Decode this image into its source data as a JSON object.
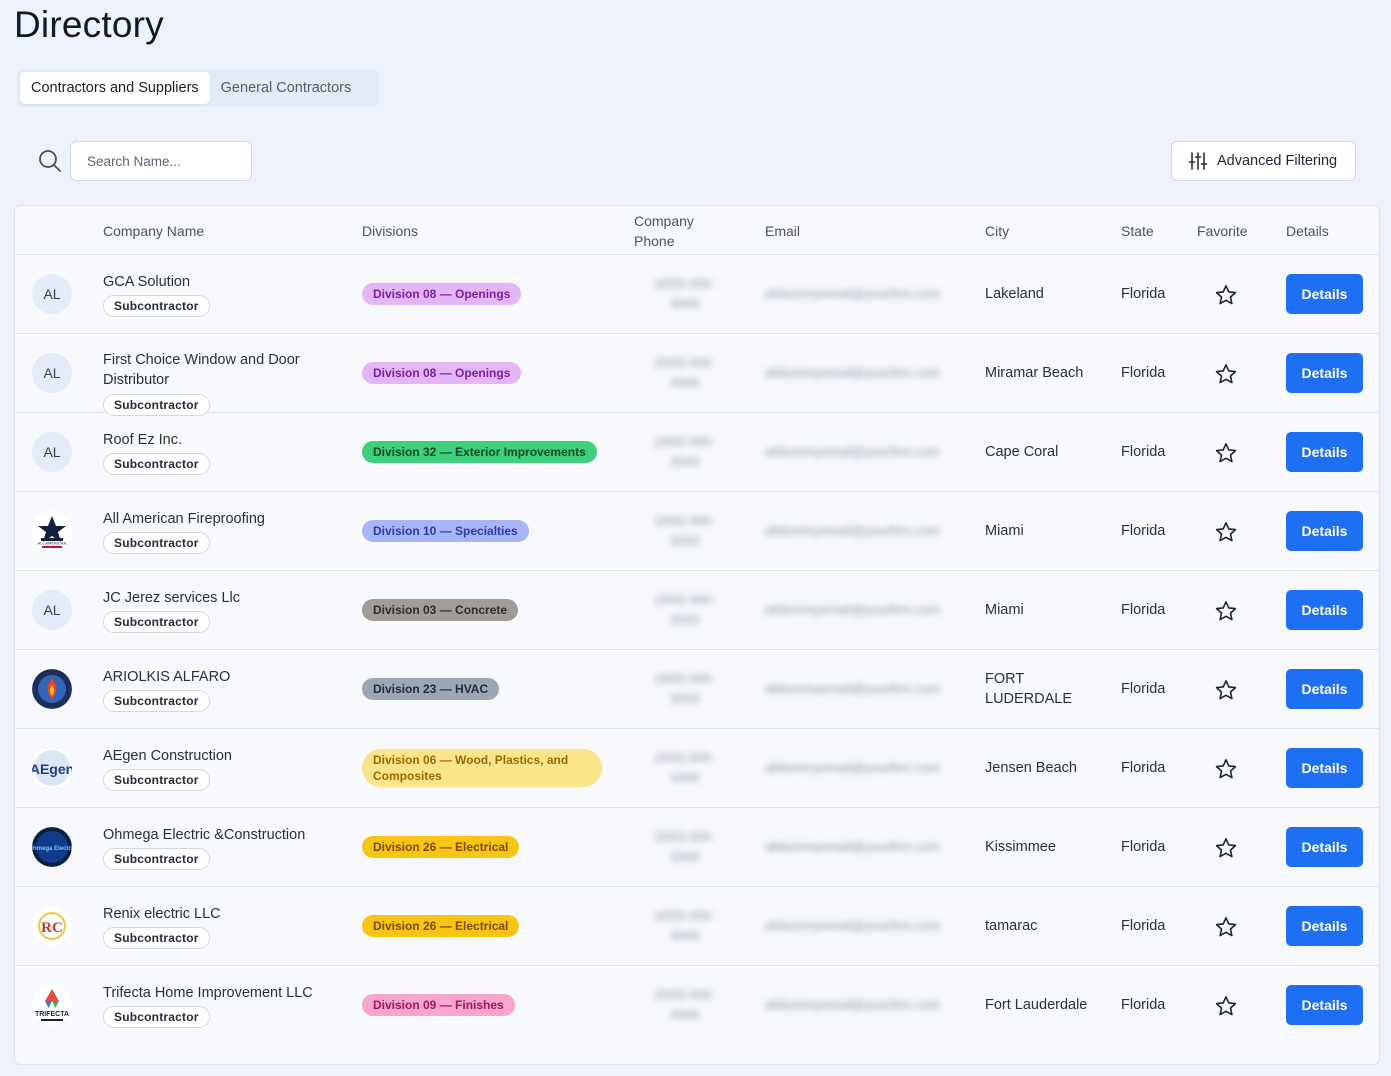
{
  "page_title": "Directory",
  "tabs": [
    {
      "label": "Contractors and Suppliers",
      "active": true
    },
    {
      "label": "General Contractors",
      "active": false
    }
  ],
  "search": {
    "placeholder": "Search Name..."
  },
  "advanced_filtering": {
    "label": "Advanced Filtering",
    "icon": "sliders-icon"
  },
  "columns": {
    "company_name": "Company Name",
    "divisions": "Divisions",
    "company_phone": "Company Phone",
    "email": "Email",
    "city": "City",
    "state": "State",
    "favorite": "Favorite",
    "details": "Details"
  },
  "details_label": "Details",
  "rows": [
    {
      "avatar": "AL",
      "name": "GCA Solution",
      "type": "Subcontractor",
      "division": "Division 08 — Openings",
      "division_bg": "#e5b6f7",
      "division_fg": "#7a1fa8",
      "phone": "(000) 000-0000",
      "email": "alldummyemail@yourfirm.com",
      "city": "Lakeland",
      "state": "Florida"
    },
    {
      "avatar": "AL",
      "name": "First Choice Window and Door Distributor",
      "type": "Subcontractor",
      "division": "Division 08 — Openings",
      "division_bg": "#e5b6f7",
      "division_fg": "#7a1fa8",
      "phone": "(000) 000-0000",
      "email": "alldummyemail@yourfirm.com",
      "city": "Miramar Beach",
      "state": "Florida"
    },
    {
      "avatar": "AL",
      "name": "Roof Ez Inc.",
      "type": "Subcontractor",
      "division": "Division 32 — Exterior Improvements",
      "division_bg": "#3ed07a",
      "division_fg": "#0c4a25",
      "phone": "(000) 000-0000",
      "email": "alldummyemail@yourfirm.com",
      "city": "Cape Coral",
      "state": "Florida"
    },
    {
      "avatar": "logo-fireproofing",
      "name": "All American Fireproofing",
      "type": "Subcontractor",
      "division": "Division 10 — Specialties",
      "division_bg": "#a9b5f6",
      "division_fg": "#2e3aa8",
      "phone": "(000) 000-0000",
      "email": "alldummyemail@yourfirm.com",
      "city": "Miami",
      "state": "Florida"
    },
    {
      "avatar": "AL",
      "name": "JC Jerez services Llc",
      "type": "Subcontractor",
      "division": "Division 03 — Concrete",
      "division_bg": "#a29c97",
      "division_fg": "#2f2b27",
      "phone": "(000) 000-0000",
      "email": "alldummyemail@yourfirm.com",
      "city": "Miami",
      "state": "Florida"
    },
    {
      "avatar": "logo-alfaro",
      "name": "ARIOLKIS ALFARO",
      "type": "Subcontractor",
      "division": "Division 23 — HVAC",
      "division_bg": "#9da6b3",
      "division_fg": "#262c36",
      "phone": "(000) 000-0000",
      "email": "alldummyemail@yourfirm.com",
      "city": "FORT LUDERDALE",
      "state": "Florida"
    },
    {
      "avatar": "logo-aegen",
      "name": "AEgen Construction",
      "type": "Subcontractor",
      "division": "Division 06 — Wood, Plastics, and Composites",
      "division_bg": "#fce48a",
      "division_fg": "#9a6a05",
      "phone": "(000) 000-0000",
      "email": "alldummyemail@yourfirm.com",
      "city": "Jensen Beach",
      "state": "Florida"
    },
    {
      "avatar": "logo-ohmega",
      "name": "Ohmega Electric &Construction",
      "type": "Subcontractor",
      "division": "Division 26 — Electrical",
      "division_bg": "#f8c514",
      "division_fg": "#7a4c00",
      "phone": "(000) 000-0000",
      "email": "alldummyemail@yourfirm.com",
      "city": "Kissimmee",
      "state": "Florida"
    },
    {
      "avatar": "logo-renix",
      "name": "Renix electric LLC",
      "type": "Subcontractor",
      "division": "Division 26 — Electrical",
      "division_bg": "#f8c514",
      "division_fg": "#7a4c00",
      "phone": "(000) 000-0000",
      "email": "alldummyemail@yourfirm.com",
      "city": "tamarac",
      "state": "Florida"
    },
    {
      "avatar": "logo-trifecta",
      "name": "Trifecta Home Improvement LLC",
      "type": "Subcontractor",
      "division": "Division 09 — Finishes",
      "division_bg": "#f7a6cd",
      "division_fg": "#a8135b",
      "phone": "(000) 000-0000",
      "email": "alldummyemail@yourfirm.com",
      "city": "Fort Lauderdale",
      "state": "Florida"
    }
  ],
  "colors": {
    "accent": "#1f6ff2",
    "background": "#eef3fb"
  },
  "logo_text": {
    "fireproofing": "ALL AMERICAN",
    "aegen": "AEgen",
    "ohmega": "Ohmega Electric",
    "renix": "RC",
    "trifecta": "TRIFECTA"
  }
}
